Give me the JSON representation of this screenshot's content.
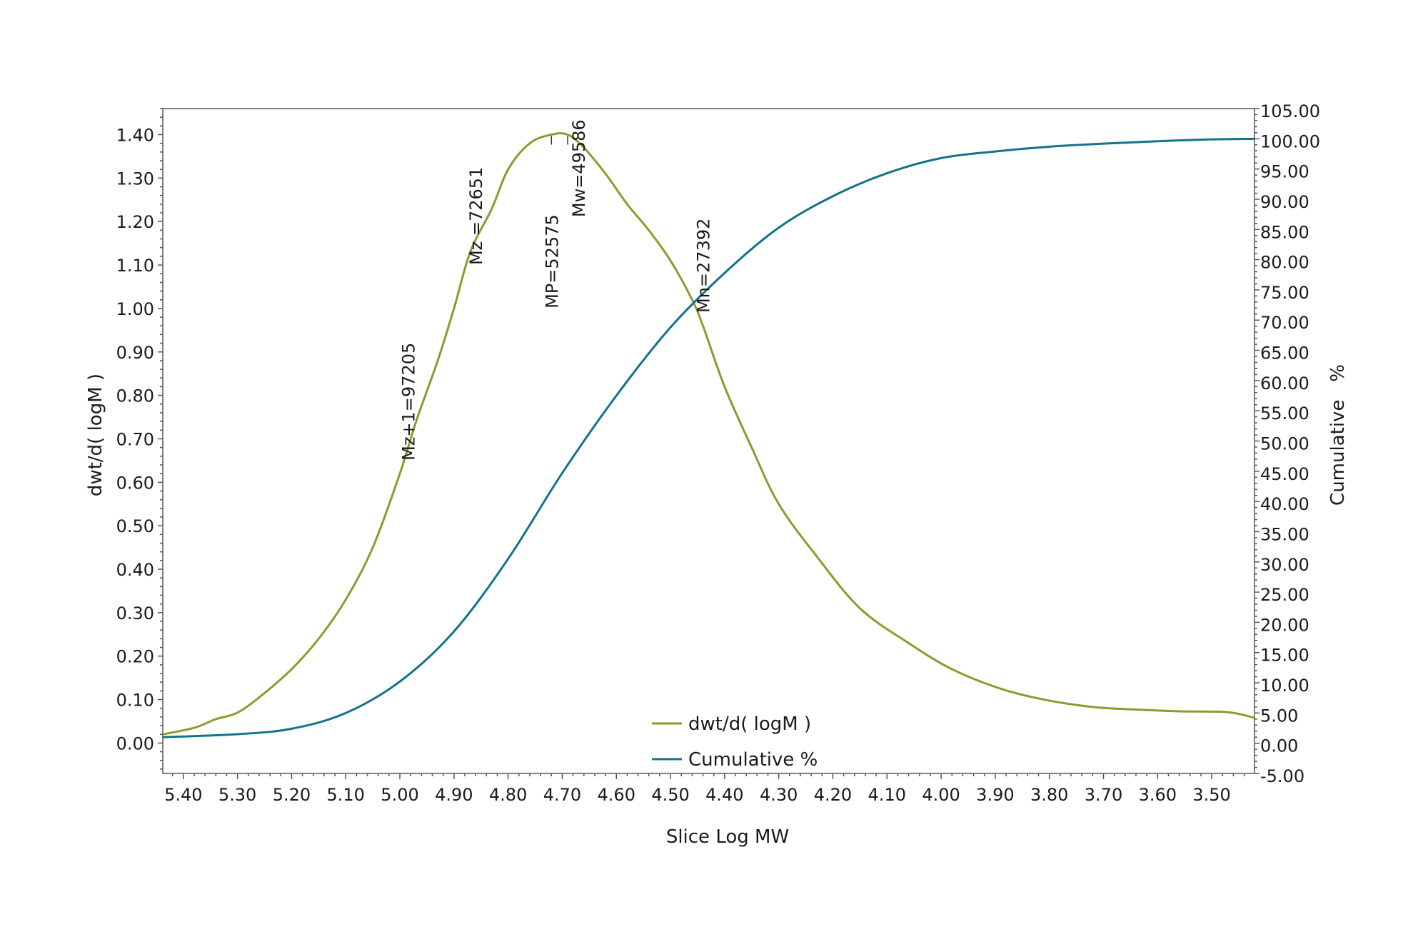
{
  "chart_data": {
    "type": "line",
    "title": "",
    "xlabel": "Slice Log MW",
    "ylabel": "dwt/d( logM )",
    "y2label": "Cumulative   %",
    "xlim": [
      5.438,
      3.421
    ],
    "ylim": [
      -0.07,
      1.46
    ],
    "y2lim": [
      -5,
      105
    ],
    "grid": false,
    "legend_position": "bottom-center",
    "x_ticks": [
      "5.40",
      "5.30",
      "5.20",
      "5.10",
      "5.00",
      "4.90",
      "4.80",
      "4.70",
      "4.60",
      "4.50",
      "4.40",
      "4.30",
      "4.20",
      "4.10",
      "4.00",
      "3.90",
      "3.80",
      "3.70",
      "3.60",
      "3.50"
    ],
    "y_ticks": [
      "0.00",
      "0.10",
      "0.20",
      "0.30",
      "0.40",
      "0.50",
      "0.60",
      "0.70",
      "0.80",
      "0.90",
      "1.00",
      "1.10",
      "1.20",
      "1.30",
      "1.40"
    ],
    "y2_ticks": [
      "-5.00",
      "0.00",
      "5.00",
      "10.00",
      "15.00",
      "20.00",
      "25.00",
      "30.00",
      "35.00",
      "40.00",
      "45.00",
      "50.00",
      "55.00",
      "60.00",
      "65.00",
      "70.00",
      "75.00",
      "80.00",
      "85.00",
      "90.00",
      "95.00",
      "100.00",
      "105.00"
    ],
    "series": [
      {
        "name": "dwt/d( logM )",
        "axis": "left",
        "color": "#8a9c2c",
        "x": [
          5.438,
          5.38,
          5.34,
          5.3,
          5.255,
          5.2,
          5.15,
          5.1,
          5.05,
          5.0,
          4.97,
          4.93,
          4.9,
          4.87,
          4.83,
          4.8,
          4.76,
          4.72,
          4.69,
          4.66,
          4.62,
          4.58,
          4.54,
          4.5,
          4.46,
          4.44,
          4.4,
          4.35,
          4.3,
          4.23,
          4.15,
          4.06,
          3.98,
          3.89,
          3.81,
          3.72,
          3.64,
          3.56,
          3.47,
          3.421
        ],
        "y": [
          0.02,
          0.035,
          0.055,
          0.07,
          0.11,
          0.17,
          0.24,
          0.33,
          0.45,
          0.62,
          0.74,
          0.88,
          1.0,
          1.13,
          1.23,
          1.32,
          1.38,
          1.4,
          1.4,
          1.37,
          1.31,
          1.24,
          1.18,
          1.11,
          1.02,
          0.96,
          0.82,
          0.68,
          0.55,
          0.43,
          0.31,
          0.23,
          0.17,
          0.125,
          0.1,
          0.083,
          0.077,
          0.073,
          0.071,
          0.058
        ]
      },
      {
        "name": "Cumulative %",
        "axis": "right",
        "color": "#127389",
        "x": [
          5.438,
          5.3,
          5.2,
          5.1,
          5.0,
          4.9,
          4.8,
          4.7,
          4.6,
          4.5,
          4.4,
          4.3,
          4.2,
          4.1,
          4.0,
          3.9,
          3.8,
          3.7,
          3.6,
          3.5,
          3.421
        ],
        "y": [
          1.0,
          1.5,
          2.4,
          5.0,
          10.2,
          18.5,
          30.5,
          44.7,
          57.5,
          68.8,
          77.8,
          85.3,
          90.5,
          94.3,
          96.8,
          97.9,
          98.7,
          99.2,
          99.6,
          99.9,
          100.0
        ]
      }
    ],
    "annotations": [
      {
        "text": "Mz+1=97205",
        "x": 4.985,
        "y": 0.65
      },
      {
        "text": "Mz =72651",
        "x": 4.86,
        "y": 1.1
      },
      {
        "text": "MP=52575",
        "x": 4.72,
        "y": 1.0
      },
      {
        "text": "Mw=49586",
        "x": 4.67,
        "y": 1.21
      },
      {
        "text": "Mn=27392",
        "x": 4.44,
        "y": 0.99
      }
    ],
    "peak_markers": [
      4.72,
      4.69
    ]
  }
}
